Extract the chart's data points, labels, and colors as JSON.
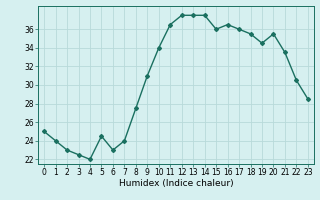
{
  "x": [
    0,
    1,
    2,
    3,
    4,
    5,
    6,
    7,
    8,
    9,
    10,
    11,
    12,
    13,
    14,
    15,
    16,
    17,
    18,
    19,
    20,
    21,
    22,
    23
  ],
  "y": [
    25,
    24,
    23,
    22.5,
    22,
    24.5,
    23,
    24,
    27.5,
    31,
    34,
    36.5,
    37.5,
    37.5,
    37.5,
    36,
    36.5,
    36,
    35.5,
    34.5,
    35.5,
    33.5,
    30.5,
    28.5
  ],
  "line_color": "#1a7060",
  "marker": "D",
  "marker_size": 2,
  "bg_color": "#d6f0f0",
  "grid_color": "#b8dada",
  "xlabel": "Humidex (Indice chaleur)",
  "ylim": [
    21.5,
    38.5
  ],
  "yticks": [
    22,
    24,
    26,
    28,
    30,
    32,
    34,
    36
  ],
  "xticks": [
    0,
    1,
    2,
    3,
    4,
    5,
    6,
    7,
    8,
    9,
    10,
    11,
    12,
    13,
    14,
    15,
    16,
    17,
    18,
    19,
    20,
    21,
    22,
    23
  ],
  "label_fontsize": 6.5,
  "tick_fontsize": 5.5
}
